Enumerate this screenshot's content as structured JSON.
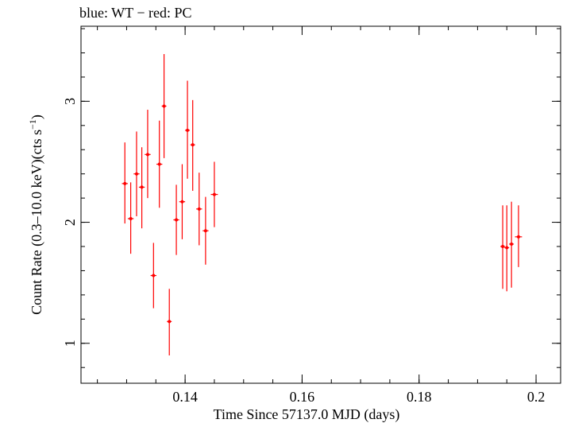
{
  "chart_data": {
    "type": "scatter",
    "title": "blue: WT − red: PC",
    "xlabel": "Time Since 57137.0 MJD (days)",
    "ylabel_main": "Count Rate (0.3–10.0 keV)(cts s",
    "ylabel_sup": "−1",
    "ylabel_end": ")",
    "xlim": [
      0.1222,
      0.2042
    ],
    "ylim": [
      0.67,
      3.62
    ],
    "x_ticks": [
      {
        "value": 0.14,
        "label": "0.14"
      },
      {
        "value": 0.16,
        "label": "0.16"
      },
      {
        "value": 0.18,
        "label": "0.18"
      },
      {
        "value": 0.2,
        "label": "0.2"
      }
    ],
    "x_minor_step": 0.005,
    "y_ticks": [
      {
        "value": 1,
        "label": "1"
      },
      {
        "value": 2,
        "label": "2"
      },
      {
        "value": 3,
        "label": "3"
      }
    ],
    "y_minor_step": 0.2,
    "series": [
      {
        "name": "PC",
        "color": "#ff0000",
        "points": [
          {
            "x": 0.1297,
            "xerr": 0.0005,
            "y": 2.32,
            "ylo": 1.99,
            "yhi": 2.66
          },
          {
            "x": 0.1307,
            "xerr": 0.0005,
            "y": 2.03,
            "ylo": 1.74,
            "yhi": 2.33
          },
          {
            "x": 0.1317,
            "xerr": 0.0005,
            "y": 2.4,
            "ylo": 2.05,
            "yhi": 2.75
          },
          {
            "x": 0.1326,
            "xerr": 0.0005,
            "y": 2.29,
            "ylo": 1.95,
            "yhi": 2.62
          },
          {
            "x": 0.1336,
            "xerr": 0.0005,
            "y": 2.56,
            "ylo": 2.2,
            "yhi": 2.93
          },
          {
            "x": 0.1346,
            "xerr": 0.0005,
            "y": 1.56,
            "ylo": 1.29,
            "yhi": 1.83
          },
          {
            "x": 0.1356,
            "xerr": 0.0005,
            "y": 2.48,
            "ylo": 2.12,
            "yhi": 2.84
          },
          {
            "x": 0.1364,
            "xerr": 0.0004,
            "y": 2.96,
            "ylo": 2.53,
            "yhi": 3.39
          },
          {
            "x": 0.1373,
            "xerr": 0.0004,
            "y": 1.18,
            "ylo": 0.9,
            "yhi": 1.45
          },
          {
            "x": 0.1385,
            "xerr": 0.0005,
            "y": 2.02,
            "ylo": 1.73,
            "yhi": 2.31
          },
          {
            "x": 0.1395,
            "xerr": 0.0005,
            "y": 2.17,
            "ylo": 1.86,
            "yhi": 2.48
          },
          {
            "x": 0.1404,
            "xerr": 0.0004,
            "y": 2.76,
            "ylo": 2.36,
            "yhi": 3.17
          },
          {
            "x": 0.1413,
            "xerr": 0.0004,
            "y": 2.64,
            "ylo": 2.26,
            "yhi": 3.01
          },
          {
            "x": 0.1424,
            "xerr": 0.0005,
            "y": 2.11,
            "ylo": 1.81,
            "yhi": 2.41
          },
          {
            "x": 0.1435,
            "xerr": 0.0005,
            "y": 1.93,
            "ylo": 1.65,
            "yhi": 2.21
          },
          {
            "x": 0.145,
            "xerr": 0.0006,
            "y": 2.23,
            "ylo": 1.96,
            "yhi": 2.5
          },
          {
            "x": 0.1943,
            "xerr": 0.0004,
            "y": 1.8,
            "ylo": 1.45,
            "yhi": 2.14
          },
          {
            "x": 0.195,
            "xerr": 0.0004,
            "y": 1.79,
            "ylo": 1.43,
            "yhi": 2.14
          },
          {
            "x": 0.1958,
            "xerr": 0.0004,
            "y": 1.82,
            "ylo": 1.46,
            "yhi": 2.17
          },
          {
            "x": 0.197,
            "xerr": 0.0006,
            "y": 1.88,
            "ylo": 1.63,
            "yhi": 2.14
          }
        ]
      }
    ]
  }
}
